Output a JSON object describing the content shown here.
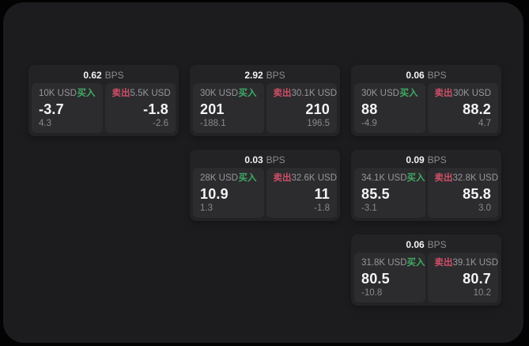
{
  "theme": {
    "outer_bg": "#030303",
    "panel_bg": "#1c1c1e",
    "card_bg": "#232325",
    "tile_bg": "#2c2c2e",
    "text_primary": "#f4f4f6",
    "text_muted": "#97979c",
    "buy_green": "#40ab66",
    "sell_red": "#cf4f68"
  },
  "labels": {
    "bps": "BPS",
    "buy": "买入",
    "sell": "卖出"
  },
  "cards": [
    {
      "spread": "0.62",
      "buy": {
        "size": "10K USD",
        "price": "-3.7",
        "delta": "4.3"
      },
      "sell": {
        "size": "5.5K USD",
        "price": "-1.8",
        "delta": "-2.6"
      }
    },
    {
      "spread": "2.92",
      "buy": {
        "size": "30K USD",
        "price": "201",
        "delta": "-188.1"
      },
      "sell": {
        "size": "30.1K USD",
        "price": "210",
        "delta": "196.5"
      }
    },
    {
      "spread": "0.06",
      "buy": {
        "size": "30K USD",
        "price": "88",
        "delta": "-4.9"
      },
      "sell": {
        "size": "30K USD",
        "price": "88.2",
        "delta": "4.7"
      }
    },
    {
      "spread": "0.03",
      "buy": {
        "size": "28K USD",
        "price": "10.9",
        "delta": "1.3"
      },
      "sell": {
        "size": "32.6K USD",
        "price": "11",
        "delta": "-1.8"
      }
    },
    {
      "spread": "0.09",
      "buy": {
        "size": "34.1K USD",
        "price": "85.5",
        "delta": "-3.1"
      },
      "sell": {
        "size": "32.8K USD",
        "price": "85.8",
        "delta": "3.0"
      }
    },
    {
      "spread": "0.06",
      "buy": {
        "size": "31.8K USD",
        "price": "80.5",
        "delta": "-10.8"
      },
      "sell": {
        "size": "39.1K USD",
        "price": "80.7",
        "delta": "10.2"
      }
    }
  ]
}
